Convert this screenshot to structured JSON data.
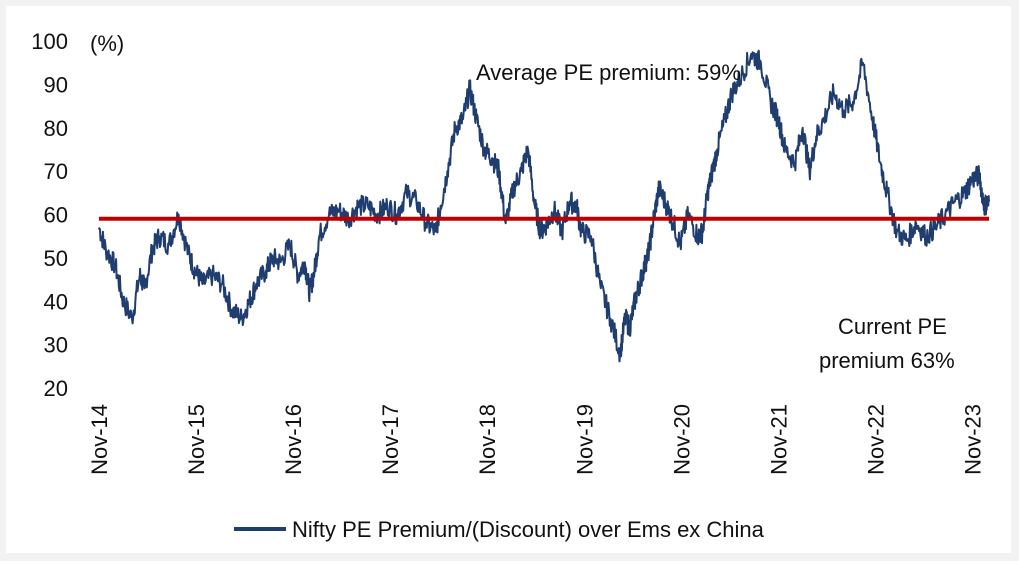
{
  "chart_data": {
    "type": "line",
    "title": "",
    "xlabel": "",
    "ylabel": "(%)",
    "ylim": [
      20,
      100
    ],
    "y_ticks": [
      20,
      30,
      40,
      50,
      60,
      70,
      80,
      90,
      100
    ],
    "x_range": [
      2014.83,
      2024.0
    ],
    "x_ticks": [
      {
        "label": "Nov-14",
        "x": 2014.83
      },
      {
        "label": "Nov-15",
        "x": 2015.83
      },
      {
        "label": "Nov-16",
        "x": 2016.83
      },
      {
        "label": "Nov-17",
        "x": 2017.83
      },
      {
        "label": "Nov-18",
        "x": 2018.83
      },
      {
        "label": "Nov-19",
        "x": 2019.83
      },
      {
        "label": "Nov-20",
        "x": 2020.83
      },
      {
        "label": "Nov-21",
        "x": 2021.83
      },
      {
        "label": "Nov-22",
        "x": 2022.83
      },
      {
        "label": "Nov-23",
        "x": 2023.83
      }
    ],
    "grid": false,
    "legend_position": "bottom",
    "series": [
      {
        "name": "Nifty PE Premium/(Discount) over Ems ex China",
        "color": "#1f3d6e",
        "x": [
          2014.83,
          2014.9,
          2015.0,
          2015.08,
          2015.17,
          2015.25,
          2015.3,
          2015.38,
          2015.45,
          2015.55,
          2015.65,
          2015.75,
          2015.82,
          2015.9,
          2016.0,
          2016.1,
          2016.2,
          2016.3,
          2016.38,
          2016.45,
          2016.55,
          2016.62,
          2016.7,
          2016.8,
          2016.88,
          2016.95,
          2017.0,
          2017.05,
          2017.1,
          2017.2,
          2017.3,
          2017.4,
          2017.5,
          2017.6,
          2017.7,
          2017.8,
          2017.9,
          2018.0,
          2018.1,
          2018.2,
          2018.3,
          2018.35,
          2018.42,
          2018.5,
          2018.58,
          2018.65,
          2018.72,
          2018.8,
          2018.88,
          2018.95,
          2019.02,
          2019.1,
          2019.18,
          2019.25,
          2019.32,
          2019.38,
          2019.45,
          2019.52,
          2019.6,
          2019.68,
          2019.75,
          2019.8,
          2019.9,
          2020.0,
          2020.1,
          2020.2,
          2020.25,
          2020.3,
          2020.35,
          2020.4,
          2020.45,
          2020.5,
          2020.55,
          2020.6,
          2020.68,
          2020.75,
          2020.82,
          2020.9,
          2021.0,
          2021.05,
          2021.1,
          2021.15,
          2021.2,
          2021.28,
          2021.35,
          2021.45,
          2021.55,
          2021.65,
          2021.75,
          2021.83,
          2021.9,
          2022.0,
          2022.08,
          2022.15,
          2022.22,
          2022.3,
          2022.4,
          2022.5,
          2022.6,
          2022.7,
          2022.8,
          2022.88,
          2022.95,
          2023.05,
          2023.15,
          2023.25,
          2023.35,
          2023.45,
          2023.55,
          2023.65,
          2023.75,
          2023.82,
          2023.9,
          2023.95,
          2024.0
        ],
        "values": [
          57,
          52,
          48,
          40,
          36,
          46,
          43,
          52,
          55,
          53,
          60,
          51,
          47,
          44,
          46,
          44,
          38,
          36,
          40,
          44,
          47,
          50,
          49,
          53,
          46,
          49,
          42,
          47,
          55,
          60,
          61,
          59,
          62,
          62,
          60,
          62,
          60,
          65,
          63,
          58,
          56,
          62,
          70,
          80,
          82,
          89,
          82,
          75,
          73,
          70,
          58,
          66,
          70,
          75,
          62,
          56,
          58,
          61,
          56,
          63,
          62,
          56,
          55,
          43,
          36,
          28,
          36,
          34,
          40,
          44,
          48,
          52,
          60,
          66,
          62,
          58,
          53,
          60,
          55,
          56,
          65,
          70,
          75,
          82,
          88,
          92,
          97,
          95,
          86,
          82,
          75,
          72,
          80,
          70,
          78,
          82,
          88,
          84,
          86,
          95,
          82,
          72,
          65,
          56,
          54,
          58,
          55,
          57,
          60,
          63,
          65,
          68,
          69,
          62,
          63
        ]
      },
      {
        "name": "Average",
        "color": "#c00000",
        "x": [
          2014.83,
          2024.0
        ],
        "values": [
          59,
          59
        ]
      }
    ],
    "annotations": [
      {
        "text": "Average PE premium: 59%"
      },
      {
        "text": "Current PE"
      },
      {
        "text": "premium 63%"
      }
    ]
  }
}
